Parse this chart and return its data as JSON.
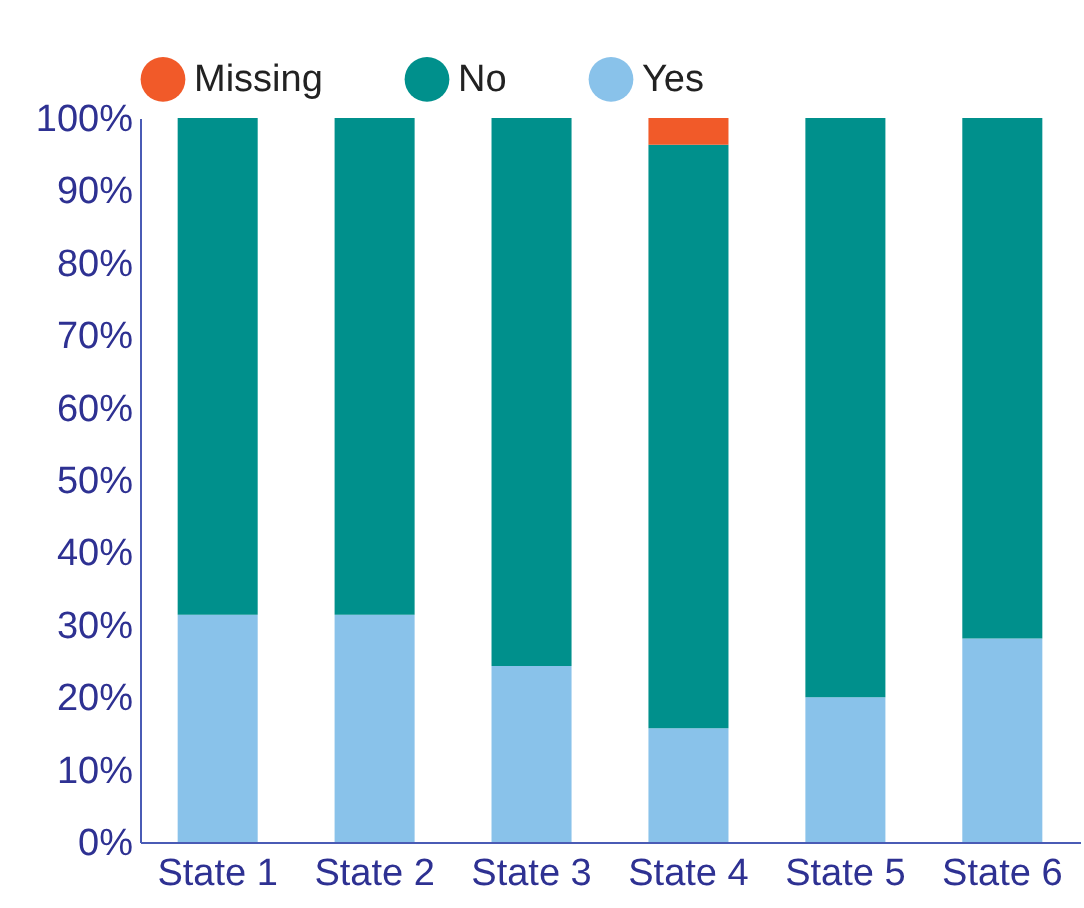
{
  "chart_data": {
    "type": "bar",
    "stacked": true,
    "categories": [
      "State 1",
      "State 2",
      "State 3",
      "State 4",
      "State 5",
      "State 6"
    ],
    "series": [
      {
        "name": "Yes",
        "color": "#89c2ea",
        "values": [
          31.4,
          31.4,
          24.3,
          15.7,
          20.0,
          28.1
        ]
      },
      {
        "name": "No",
        "color": "#00908c",
        "values": [
          68.6,
          68.6,
          75.7,
          80.6,
          80.0,
          71.9
        ]
      },
      {
        "name": "Missing",
        "color": "#f15a29",
        "values": [
          0,
          0,
          0,
          3.7,
          0,
          0
        ]
      }
    ],
    "ylim": [
      0,
      100
    ],
    "yticks": [
      {
        "value": 0,
        "label": "0%"
      },
      {
        "value": 10,
        "label": "10%"
      },
      {
        "value": 20,
        "label": "20%"
      },
      {
        "value": 30,
        "label": "30%"
      },
      {
        "value": 40,
        "label": "40%"
      },
      {
        "value": 50,
        "label": "50%"
      },
      {
        "value": 60,
        "label": "60%"
      },
      {
        "value": 70,
        "label": "70%"
      },
      {
        "value": 80,
        "label": "80%"
      },
      {
        "value": 90,
        "label": "90%"
      },
      {
        "value": 100,
        "label": "100%"
      }
    ],
    "grid": false,
    "legend": "top"
  }
}
